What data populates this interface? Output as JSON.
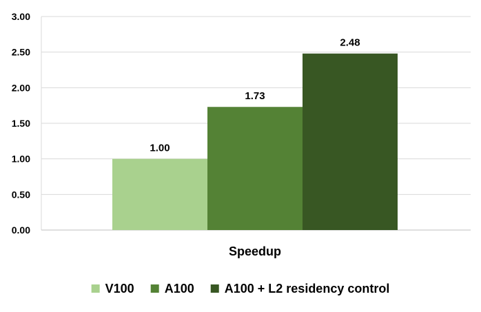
{
  "chart_data": {
    "type": "bar",
    "categories": [
      "Speedup"
    ],
    "series": [
      {
        "name": "V100",
        "values": [
          1.0
        ],
        "label": "1.00",
        "color": "#a9d18e"
      },
      {
        "name": "A100",
        "values": [
          1.73
        ],
        "label": "1.73",
        "color": "#548235"
      },
      {
        "name": "A100 + L2 residency control",
        "values": [
          2.48
        ],
        "label": "2.48",
        "color": "#385723"
      }
    ],
    "ylim": [
      0,
      3.0
    ],
    "y_ticks": [
      "0.00",
      "0.50",
      "1.00",
      "1.50",
      "2.00",
      "2.50",
      "3.00"
    ],
    "y_tick_values": [
      0,
      0.5,
      1.0,
      1.5,
      2.0,
      2.5,
      3.0
    ],
    "grid": true,
    "grid_color": "#d9d9d9",
    "legend_position": "bottom",
    "title": "",
    "xlabel": "",
    "ylabel": ""
  }
}
